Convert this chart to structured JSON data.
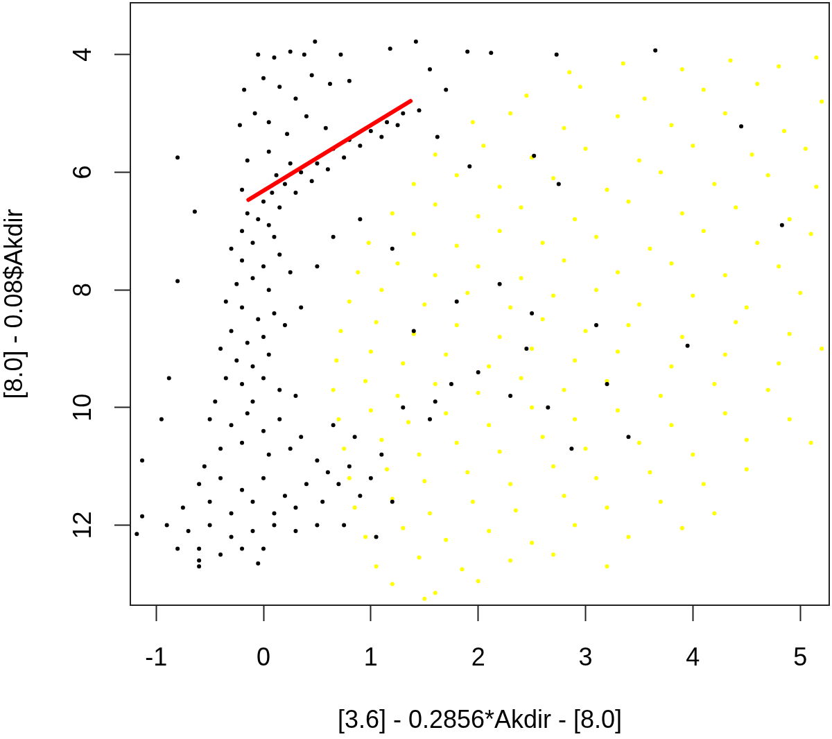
{
  "chart_data": {
    "type": "scatter",
    "xlabel": "[3.6] - 0.2856*Akdir - [8.0]",
    "ylabel": "[8.0] - 0.08$Akdir",
    "xlim": [
      -1.24,
      5.27
    ],
    "ylim": [
      13.36,
      3.12
    ],
    "xticks": [
      -1,
      0,
      1,
      2,
      3,
      4,
      5
    ],
    "yticks": [
      4,
      6,
      8,
      10,
      12
    ],
    "marker": "circle",
    "series": [
      {
        "color": "#ffff00",
        "x": [
          2.85,
          3.35,
          3.9,
          4.35,
          4.8,
          5.15,
          2.45,
          2.95,
          3.55,
          4.1,
          4.6,
          5.2,
          1.95,
          2.3,
          2.8,
          3.3,
          3.8,
          4.3,
          4.85,
          1.6,
          2.05,
          2.5,
          3.0,
          3.5,
          4.0,
          4.55,
          5.05,
          1.4,
          1.8,
          2.2,
          2.7,
          3.2,
          3.7,
          4.2,
          4.7,
          5.15,
          1.2,
          1.6,
          2.0,
          2.4,
          2.9,
          3.4,
          3.9,
          4.4,
          4.9,
          0.98,
          1.4,
          1.8,
          2.2,
          2.6,
          3.1,
          3.6,
          4.1,
          4.6,
          5.1,
          0.88,
          1.25,
          1.6,
          2.0,
          2.4,
          2.8,
          3.3,
          3.8,
          4.3,
          4.8,
          0.8,
          1.1,
          1.5,
          1.9,
          2.3,
          2.7,
          3.1,
          3.5,
          4.0,
          4.5,
          5.0,
          0.72,
          1.05,
          1.4,
          1.8,
          2.2,
          2.6,
          3.0,
          3.4,
          3.9,
          4.4,
          4.9,
          0.68,
          1.0,
          1.3,
          1.7,
          2.1,
          2.5,
          2.9,
          3.3,
          3.8,
          4.3,
          4.8,
          5.2,
          0.65,
          0.95,
          1.25,
          1.6,
          2.0,
          2.4,
          2.8,
          3.2,
          3.7,
          4.2,
          4.7,
          0.7,
          1.0,
          1.35,
          1.7,
          2.1,
          2.5,
          2.9,
          3.3,
          3.8,
          4.3,
          4.9,
          0.75,
          1.1,
          1.45,
          1.8,
          2.2,
          2.6,
          3.0,
          3.5,
          4.0,
          4.5,
          5.1,
          0.8,
          1.15,
          1.5,
          1.9,
          2.3,
          2.7,
          3.1,
          3.6,
          4.1,
          4.5,
          0.85,
          1.2,
          1.55,
          1.95,
          2.35,
          2.8,
          3.2,
          3.7,
          4.2,
          0.95,
          1.3,
          1.7,
          2.1,
          2.5,
          2.9,
          3.4,
          3.9,
          1.05,
          1.45,
          1.85,
          2.3,
          2.7,
          3.2,
          1.2,
          1.6,
          2.0,
          1.5
        ],
        "values": [
          4.3,
          4.15,
          4.25,
          4.1,
          4.2,
          4.05,
          4.7,
          4.55,
          4.75,
          4.6,
          4.5,
          4.8,
          5.15,
          5.0,
          5.25,
          5.05,
          5.2,
          5.0,
          5.3,
          5.7,
          5.55,
          5.75,
          5.6,
          5.8,
          5.55,
          5.7,
          5.6,
          6.2,
          6.05,
          6.25,
          6.1,
          6.3,
          6.0,
          6.2,
          6.05,
          6.25,
          6.7,
          6.55,
          6.75,
          6.6,
          6.8,
          6.5,
          6.7,
          6.6,
          6.8,
          7.2,
          7.05,
          7.25,
          7.0,
          7.2,
          7.1,
          7.3,
          7.0,
          7.2,
          7.05,
          7.7,
          7.55,
          7.75,
          7.6,
          7.8,
          7.5,
          7.7,
          7.55,
          7.75,
          7.6,
          8.2,
          8.0,
          8.25,
          8.05,
          8.3,
          8.1,
          8.0,
          8.25,
          8.1,
          8.3,
          8.05,
          8.7,
          8.55,
          8.75,
          8.6,
          8.8,
          8.5,
          8.7,
          8.6,
          8.8,
          8.55,
          8.75,
          9.2,
          9.05,
          9.25,
          9.1,
          9.3,
          9.0,
          9.2,
          9.05,
          9.3,
          9.1,
          9.25,
          9.0,
          9.7,
          9.55,
          9.8,
          9.6,
          9.75,
          9.5,
          9.7,
          9.55,
          9.8,
          9.6,
          9.7,
          10.2,
          10.05,
          10.25,
          10.1,
          10.3,
          10.0,
          10.2,
          10.05,
          10.3,
          10.1,
          10.2,
          10.7,
          10.55,
          10.8,
          10.6,
          10.75,
          10.5,
          10.7,
          10.6,
          10.8,
          10.55,
          10.6,
          11.2,
          11.05,
          11.25,
          11.1,
          11.3,
          11.0,
          11.2,
          11.1,
          11.3,
          11.05,
          11.7,
          11.55,
          11.8,
          11.6,
          11.75,
          11.5,
          11.7,
          11.6,
          11.8,
          12.2,
          12.05,
          12.25,
          12.1,
          12.3,
          12.0,
          12.2,
          12.05,
          12.7,
          12.55,
          12.75,
          12.6,
          12.5,
          12.7,
          13.0,
          13.15,
          12.95,
          13.25
        ]
      },
      {
        "color": "#000000",
        "x": [
          -0.05,
          0.1,
          0.25,
          0.38,
          0.48,
          0.72,
          1.18,
          1.42,
          1.9,
          2.12,
          2.73,
          3.65,
          -0.18,
          0.0,
          0.15,
          0.3,
          0.45,
          0.62,
          0.8,
          1.55,
          1.7,
          -0.22,
          -0.08,
          0.05,
          0.22,
          0.4,
          0.58,
          -0.15,
          0.05,
          0.25,
          1.45,
          1.62,
          1.92,
          -0.2,
          0.12,
          0.0,
          0.08,
          0.15,
          0.2,
          0.3,
          0.35,
          0.45,
          0.5,
          0.6,
          0.65,
          0.75,
          0.8,
          0.9,
          1.0,
          1.1,
          1.15,
          1.25,
          1.3,
          -0.15,
          -0.05,
          0.05,
          -0.2,
          0.1,
          -0.3,
          -0.2,
          -0.1,
          0.0,
          0.15,
          -0.25,
          -0.1,
          0.05,
          0.25,
          -0.35,
          -0.2,
          -0.05,
          0.1,
          -0.3,
          -0.15,
          0.0,
          0.2,
          -0.4,
          -0.25,
          -0.1,
          0.05,
          -0.35,
          -0.2,
          0.0,
          0.15,
          -0.45,
          -0.1,
          0.3,
          -0.5,
          -0.3,
          -0.15,
          0.0,
          0.15,
          0.35,
          -0.4,
          -0.2,
          0.05,
          0.25,
          0.5,
          -0.55,
          -0.6,
          -0.4,
          -0.2,
          0.0,
          0.2,
          0.4,
          0.6,
          -0.75,
          -0.5,
          -0.3,
          -0.1,
          0.1,
          0.3,
          0.55,
          -0.9,
          -0.7,
          -0.5,
          -0.3,
          -0.1,
          0.1,
          0.3,
          0.5,
          -0.8,
          -0.6,
          -0.4,
          -0.2,
          0.0,
          -0.6,
          -0.8,
          -0.64,
          -0.8,
          -1.13,
          -1.13,
          -1.18,
          -0.6,
          -0.05,
          -0.95,
          -0.88,
          0.7,
          0.8,
          0.9,
          1.0,
          0.65,
          0.85,
          1.1,
          0.75,
          1.05,
          1.2,
          1.3,
          1.55,
          1.6,
          1.75,
          2.0,
          2.3,
          2.45,
          2.65,
          2.87,
          3.2,
          3.4,
          3.95,
          1.4,
          1.8,
          2.2,
          2.5,
          2.75,
          2.52,
          4.45,
          4.83,
          3.1,
          1.2,
          0.9,
          0.65,
          0.5,
          0.35
        ],
        "values": [
          4.0,
          4.05,
          3.95,
          4.0,
          3.78,
          4.0,
          3.9,
          3.78,
          3.95,
          3.97,
          4.0,
          3.93,
          4.6,
          4.4,
          4.55,
          4.75,
          4.35,
          4.5,
          4.45,
          4.25,
          4.6,
          5.2,
          5.0,
          5.15,
          5.35,
          5.05,
          5.25,
          5.8,
          5.65,
          5.85,
          4.95,
          5.4,
          5.9,
          6.3,
          6.05,
          6.5,
          6.35,
          6.6,
          6.2,
          6.35,
          6.0,
          6.15,
          5.85,
          5.95,
          5.6,
          5.75,
          5.45,
          5.55,
          5.3,
          5.4,
          5.15,
          5.2,
          5.0,
          6.7,
          6.8,
          6.9,
          7.0,
          7.1,
          7.3,
          7.5,
          7.2,
          7.6,
          7.4,
          7.9,
          7.8,
          8.0,
          7.7,
          8.2,
          8.3,
          8.5,
          8.4,
          8.7,
          8.9,
          8.8,
          8.6,
          9.0,
          9.2,
          9.3,
          9.1,
          9.5,
          9.6,
          9.5,
          9.7,
          9.9,
          9.9,
          9.8,
          10.2,
          10.3,
          10.1,
          10.4,
          10.2,
          10.5,
          10.7,
          10.6,
          10.8,
          10.7,
          10.9,
          11.0,
          11.3,
          11.2,
          11.4,
          11.2,
          11.5,
          11.3,
          11.1,
          11.7,
          11.6,
          11.8,
          11.6,
          11.8,
          11.7,
          11.6,
          12.0,
          12.1,
          12.0,
          12.2,
          12.1,
          12.0,
          12.1,
          12.0,
          12.4,
          12.4,
          12.5,
          12.4,
          12.4,
          12.6,
          5.75,
          6.67,
          7.85,
          10.9,
          11.85,
          12.15,
          12.7,
          12.65,
          10.2,
          9.5,
          11.3,
          11.0,
          11.5,
          11.2,
          10.3,
          10.5,
          10.8,
          12.0,
          12.2,
          11.6,
          10.0,
          10.2,
          9.9,
          9.6,
          9.4,
          9.8,
          9.0,
          10.0,
          10.7,
          9.6,
          10.5,
          8.95,
          8.7,
          8.2,
          7.9,
          8.4,
          6.2,
          5.72,
          5.22,
          6.9,
          8.6,
          7.3,
          6.8,
          7.1,
          7.6,
          8.3
        ]
      },
      {
        "type": "line",
        "color": "#ff0000",
        "marker": "none",
        "x": [
          -0.14,
          1.37
        ],
        "values": [
          6.47,
          4.79
        ]
      }
    ]
  }
}
